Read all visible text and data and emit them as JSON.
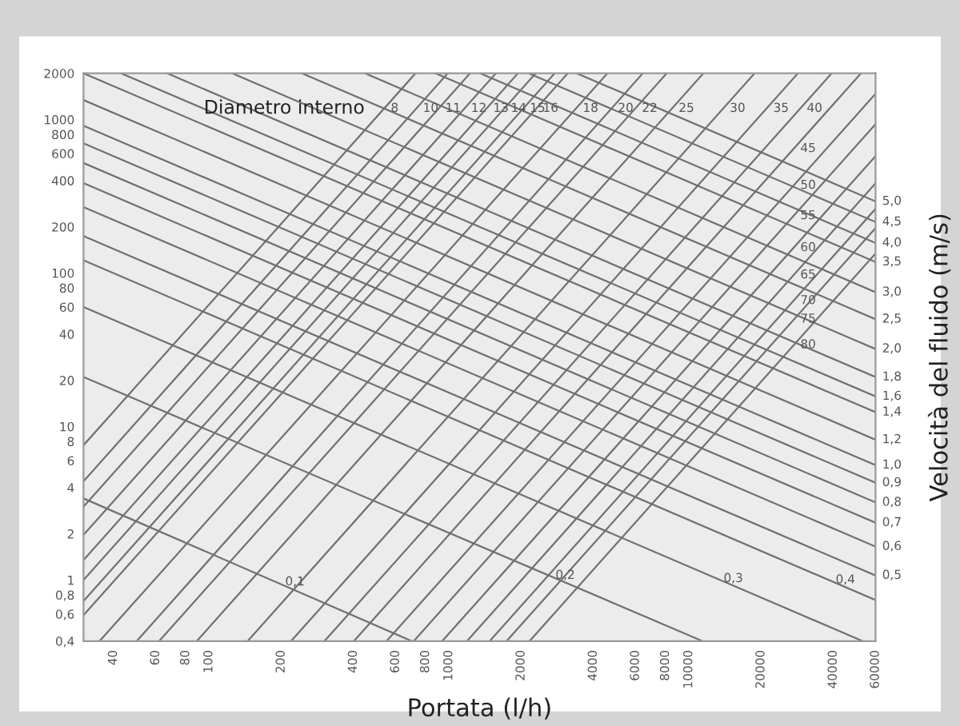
{
  "chart_data": {
    "type": "line",
    "xlabel": "Portata (l/h)",
    "y2label": "Velocità del fluido (m/s)",
    "log": "xy",
    "grid": false,
    "xlim": [
      30,
      60000
    ],
    "ylim": [
      0.4,
      2000
    ],
    "xticks": [
      40,
      60,
      80,
      100,
      200,
      400,
      600,
      800,
      1000,
      2000,
      4000,
      6000,
      8000,
      10000,
      20000,
      40000,
      60000
    ],
    "yticks": [
      {
        "value": 0.4,
        "label": "0,4"
      },
      {
        "value": 0.6,
        "label": "0,6"
      },
      {
        "value": 0.8,
        "label": "0,8"
      },
      1,
      2,
      4,
      6,
      8,
      10,
      20,
      40,
      60,
      80,
      100,
      200,
      400,
      600,
      800,
      1000,
      2000
    ],
    "series": [
      {
        "color": "#707070",
        "x": [
          30,
          700
        ],
        "values": [
          3.4,
          0.4
        ]
      },
      {
        "color": "#707070",
        "x": [
          30,
          11400
        ],
        "values": [
          21,
          0.4
        ]
      },
      {
        "color": "#707070",
        "x": [
          30,
          53000
        ],
        "values": [
          60,
          0.4
        ]
      },
      {
        "color": "#707070",
        "x": [
          30,
          60000
        ],
        "values": [
          121,
          0.74
        ]
      },
      {
        "color": "#707070",
        "x": [
          30,
          60000
        ],
        "values": [
          174,
          1.07
        ]
      },
      {
        "color": "#707070",
        "x": [
          30,
          60000
        ],
        "values": [
          269,
          1.65
        ]
      },
      {
        "color": "#707070",
        "x": [
          30,
          60000
        ],
        "values": [
          385,
          2.36
        ]
      },
      {
        "color": "#707070",
        "x": [
          30,
          60000
        ],
        "values": [
          521,
          3.2
        ]
      },
      {
        "color": "#707070",
        "x": [
          30,
          60000
        ],
        "values": [
          700,
          4.3
        ]
      },
      {
        "color": "#707070",
        "x": [
          30,
          60000
        ],
        "values": [
          912,
          5.6
        ]
      },
      {
        "color": "#707070",
        "x": [
          30,
          60000
        ],
        "values": [
          1340,
          8.2
        ]
      },
      {
        "color": "#707070",
        "x": [
          30,
          60000
        ],
        "values": [
          2000,
          12.4
        ]
      },
      {
        "color": "#707070",
        "x": [
          43,
          60000
        ],
        "values": [
          2000,
          15.7
        ]
      },
      {
        "color": "#707070",
        "x": [
          67,
          60000
        ],
        "values": [
          2000,
          21
        ]
      },
      {
        "color": "#707070",
        "x": [
          125,
          60000
        ],
        "values": [
          2000,
          32
        ]
      },
      {
        "color": "#707070",
        "x": [
          244,
          60000
        ],
        "values": [
          2000,
          50
        ]
      },
      {
        "color": "#707070",
        "x": [
          447,
          60000
        ],
        "values": [
          2000,
          75
        ]
      },
      {
        "color": "#707070",
        "x": [
          879,
          60000
        ],
        "values": [
          2000,
          118
        ]
      },
      {
        "color": "#707070",
        "x": [
          1350,
          60000
        ],
        "values": [
          2000,
          157
        ]
      },
      {
        "color": "#707070",
        "x": [
          2150,
          60000
        ],
        "values": [
          2000,
          215
        ]
      },
      {
        "color": "#707070",
        "x": [
          3410,
          60000
        ],
        "values": [
          2000,
          293
        ]
      },
      {
        "color": "#707070",
        "x": [
          30,
          726
        ],
        "values": [
          7.55,
          2000
        ]
      },
      {
        "color": "#707070",
        "x": [
          30,
          989
        ],
        "values": [
          4.4,
          2000
        ]
      },
      {
        "color": "#707070",
        "x": [
          30,
          1225
        ],
        "values": [
          3.0,
          2000
        ]
      },
      {
        "color": "#707070",
        "x": [
          30,
          1570
        ],
        "values": [
          1.97,
          2000
        ]
      },
      {
        "color": "#707070",
        "x": [
          30,
          1940
        ],
        "values": [
          1.35,
          2000
        ]
      },
      {
        "color": "#707070",
        "x": [
          30,
          2300
        ],
        "values": [
          1.0,
          2000
        ]
      },
      {
        "color": "#707070",
        "x": [
          30,
          2760
        ],
        "values": [
          0.73,
          2000
        ]
      },
      {
        "color": "#707070",
        "x": [
          30,
          3130
        ],
        "values": [
          0.59,
          2000
        ]
      },
      {
        "color": "#707070",
        "x": [
          35,
          4580
        ],
        "values": [
          0.4,
          2000
        ]
      },
      {
        "color": "#707070",
        "x": [
          50,
          6430
        ],
        "values": [
          0.4,
          2000
        ]
      },
      {
        "color": "#707070",
        "x": [
          62,
          8090
        ],
        "values": [
          0.4,
          2000
        ]
      },
      {
        "color": "#707070",
        "x": [
          89,
          11500
        ],
        "values": [
          0.4,
          2000
        ]
      },
      {
        "color": "#707070",
        "x": [
          145,
          18800
        ],
        "values": [
          0.4,
          2000
        ]
      },
      {
        "color": "#707070",
        "x": [
          220,
          28500
        ],
        "values": [
          0.4,
          2000
        ]
      },
      {
        "color": "#707070",
        "x": [
          303,
          39400
        ],
        "values": [
          0.4,
          2000
        ]
      },
      {
        "color": "#707070",
        "x": [
          402,
          52200
        ],
        "values": [
          0.4,
          2000
        ]
      },
      {
        "color": "#707070",
        "x": [
          550,
          60000
        ],
        "values": [
          0.4,
          1470
        ]
      },
      {
        "color": "#707070",
        "x": [
          714,
          60000
        ],
        "values": [
          0.4,
          933
        ]
      },
      {
        "color": "#707070",
        "x": [
          938,
          60000
        ],
        "values": [
          0.4,
          578
        ]
      },
      {
        "color": "#707070",
        "x": [
          1190,
          60000
        ],
        "values": [
          0.4,
          384
        ]
      },
      {
        "color": "#707070",
        "x": [
          1480,
          60000
        ],
        "values": [
          0.4,
          262
        ]
      },
      {
        "color": "#707070",
        "x": [
          1740,
          60000
        ],
        "values": [
          0.4,
          196
        ]
      },
      {
        "color": "#707070",
        "x": [
          2170,
          60000
        ],
        "values": [
          0.4,
          134
        ]
      }
    ],
    "annotations": [
      "Diametro interno",
      {
        "text": "8",
        "x": 537,
        "y": 1180
      },
      {
        "text": "10",
        "x": 731,
        "y": 1180
      },
      {
        "text": "11",
        "x": 906,
        "y": 1180
      },
      {
        "text": "12",
        "x": 1160,
        "y": 1180
      },
      {
        "text": "13",
        "x": 1435,
        "y": 1180
      },
      {
        "text": "14",
        "x": 1700,
        "y": 1180
      },
      {
        "text": "15",
        "x": 2040,
        "y": 1180
      },
      {
        "text": "16",
        "x": 2310,
        "y": 1180
      },
      {
        "text": "18",
        "x": 3390,
        "y": 1180
      },
      {
        "text": "20",
        "x": 4750,
        "y": 1180
      },
      {
        "text": "22",
        "x": 5980,
        "y": 1180
      },
      {
        "text": "25",
        "x": 8510,
        "y": 1180
      },
      {
        "text": "30",
        "x": 13900,
        "y": 1180
      },
      {
        "text": "35",
        "x": 21100,
        "y": 1180
      },
      {
        "text": "40",
        "x": 29100,
        "y": 1180
      },
      {
        "text": "45",
        "x": 27350,
        "y": 646
      },
      {
        "text": "50",
        "x": 27350,
        "y": 372
      },
      {
        "text": "55",
        "x": 27350,
        "y": 236
      },
      {
        "text": "60",
        "x": 27350,
        "y": 146
      },
      {
        "text": "65",
        "x": 27350,
        "y": 97
      },
      {
        "text": "70",
        "x": 27350,
        "y": 66
      },
      {
        "text": "75",
        "x": 27350,
        "y": 50
      },
      {
        "text": "80",
        "x": 27350,
        "y": 34
      },
      {
        "text": "0,1",
        "x": 195,
        "y": 0.97
      },
      {
        "text": "0,2",
        "x": 2610,
        "y": 1.07
      },
      {
        "text": "0,3",
        "x": 13100,
        "y": 1.02
      },
      {
        "text": "0,4",
        "x": 38400,
        "y": 1.0
      },
      {
        "text": "0,5",
        "x": 60000,
        "y": 1.07
      },
      {
        "text": "0,6",
        "x": 60000,
        "y": 1.65
      },
      {
        "text": "0,7",
        "x": 60000,
        "y": 2.36
      },
      {
        "text": "0,8",
        "x": 60000,
        "y": 3.2
      },
      {
        "text": "0,9",
        "x": 60000,
        "y": 4.3
      },
      {
        "text": "1,0",
        "x": 60000,
        "y": 5.6
      },
      {
        "text": "1,2",
        "x": 60000,
        "y": 8.2
      },
      {
        "text": "1,4",
        "x": 60000,
        "y": 12.4
      },
      {
        "text": "1,6",
        "x": 60000,
        "y": 15.7
      },
      {
        "text": "1,8",
        "x": 60000,
        "y": 21
      },
      {
        "text": "2,0",
        "x": 60000,
        "y": 32
      },
      {
        "text": "2,5",
        "x": 60000,
        "y": 50
      },
      {
        "text": "3,0",
        "x": 60000,
        "y": 75
      },
      {
        "text": "3,5",
        "x": 60000,
        "y": 118
      },
      {
        "text": "4,0",
        "x": 60000,
        "y": 157
      },
      {
        "text": "4,5",
        "x": 60000,
        "y": 215
      },
      {
        "text": "5,0",
        "x": 60000,
        "y": 293
      }
    ]
  }
}
